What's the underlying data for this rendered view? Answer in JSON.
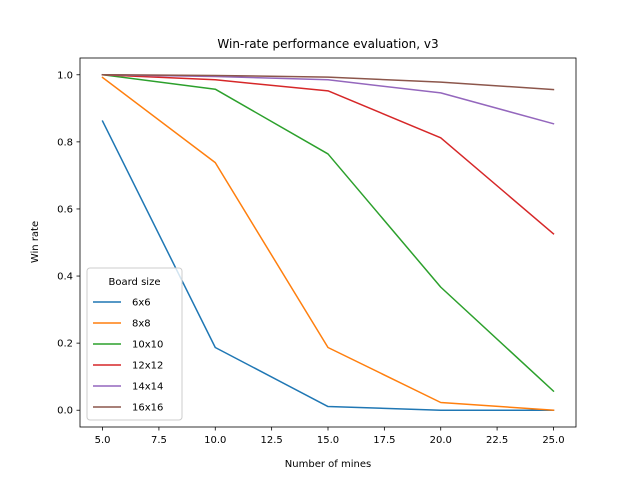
{
  "chart_data": {
    "type": "line",
    "title": "Win-rate performance evaluation, v3",
    "xlabel": "Number of mines",
    "ylabel": "Win rate",
    "x": [
      5,
      10,
      15,
      20,
      25
    ],
    "xlim": [
      4.0,
      26.0
    ],
    "ylim": [
      -0.05,
      1.05
    ],
    "xticks": [
      5.0,
      7.5,
      10.0,
      12.5,
      15.0,
      17.5,
      20.0,
      22.5,
      25.0
    ],
    "xtick_labels": [
      "5.0",
      "7.5",
      "10.0",
      "12.5",
      "15.0",
      "17.5",
      "20.0",
      "22.5",
      "25.0"
    ],
    "yticks": [
      0.0,
      0.2,
      0.4,
      0.6,
      0.8,
      1.0
    ],
    "ytick_labels": [
      "0.0",
      "0.2",
      "0.4",
      "0.6",
      "0.8",
      "1.0"
    ],
    "grid": false,
    "legend": {
      "title": "Board size",
      "placement": "lower-left"
    },
    "series": [
      {
        "name": "6x6",
        "color": "#1f77b4",
        "values": [
          0.862,
          0.187,
          0.011,
          0.0,
          0.0
        ]
      },
      {
        "name": "8x8",
        "color": "#ff7f0e",
        "values": [
          0.992,
          0.738,
          0.187,
          0.023,
          0.0
        ]
      },
      {
        "name": "10x10",
        "color": "#2ca02c",
        "values": [
          1.0,
          0.957,
          0.764,
          0.367,
          0.057
        ]
      },
      {
        "name": "12x12",
        "color": "#d62728",
        "values": [
          1.0,
          0.985,
          0.952,
          0.812,
          0.526
        ]
      },
      {
        "name": "14x14",
        "color": "#9467bd",
        "values": [
          1.0,
          0.995,
          0.985,
          0.946,
          0.854
        ]
      },
      {
        "name": "16x16",
        "color": "#8c564b",
        "values": [
          1.0,
          0.998,
          0.993,
          0.978,
          0.956
        ]
      }
    ]
  }
}
